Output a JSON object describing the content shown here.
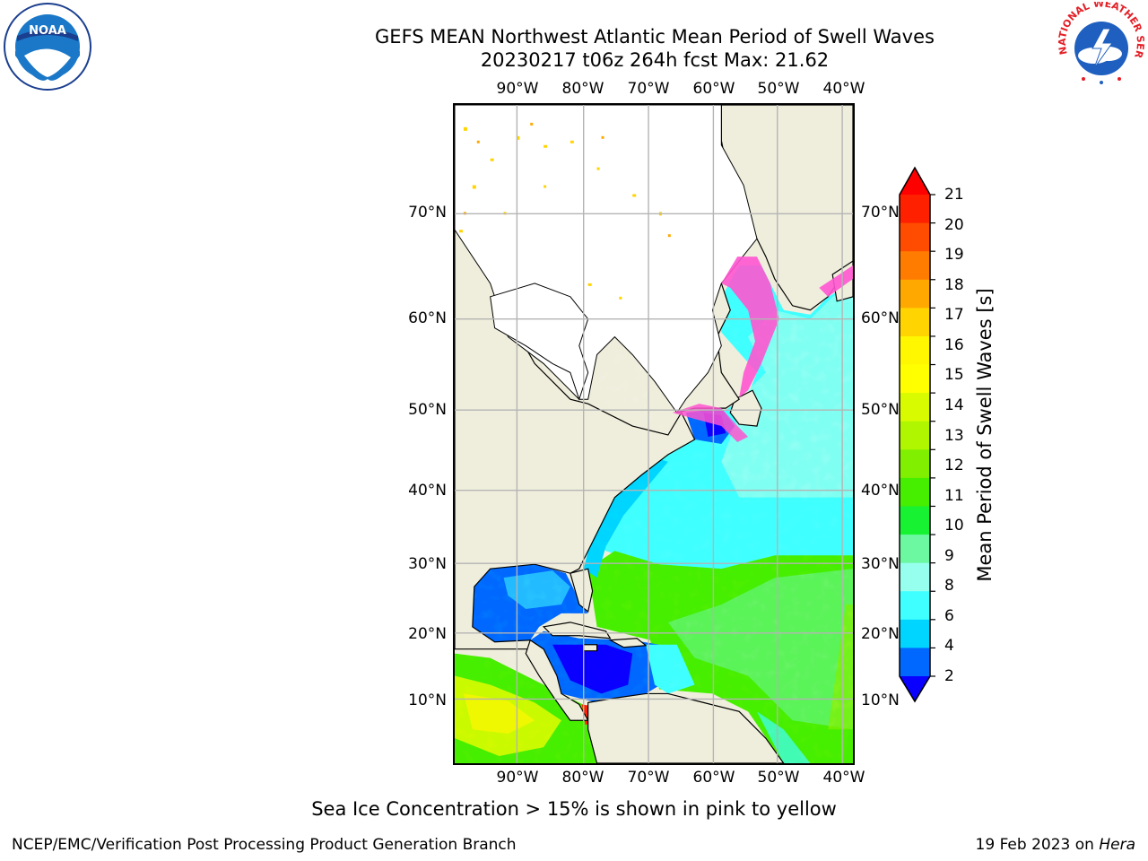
{
  "header": {
    "title_line1": "GEFS MEAN Northwest Atlantic Mean Period of Swell Waves",
    "title_line2": "20230217 t06z 264h fcst   Max: 21.62"
  },
  "axes": {
    "lon_labels": [
      "90°W",
      "80°W",
      "70°W",
      "60°W",
      "50°W",
      "40°W"
    ],
    "lat_labels": [
      "70°N",
      "60°N",
      "50°N",
      "40°N",
      "30°N",
      "20°N",
      "10°N"
    ]
  },
  "colorbar": {
    "label": "Mean Period of Swell Waves [s]",
    "ticks": [
      "21",
      "20",
      "19",
      "18",
      "17",
      "16",
      "15",
      "14",
      "13",
      "12",
      "11",
      "10",
      "9",
      "8",
      "6",
      "4",
      "2"
    ],
    "colors": [
      "#ff2000",
      "#ff4c00",
      "#ff7c00",
      "#ffa800",
      "#ffd400",
      "#fff700",
      "#ffff00",
      "#d8fb00",
      "#b0f600",
      "#80f000",
      "#46ee00",
      "#17f333",
      "#6cf8a0",
      "#96ffed",
      "#3fffff",
      "#00d5ff",
      "#0068ff"
    ],
    "under_color": "#0a00ff",
    "over_color": "#ff0000"
  },
  "map_colors": {
    "land": "#efeedc",
    "ice": "#ffffff",
    "ice_edge": "#ff55d0",
    "grid": "#b4b4b4",
    "coast": "#000000"
  },
  "logos": {
    "noaa_text": "NOAA",
    "nws_text": "NATIONAL WEATHER SERVICE"
  },
  "footer": {
    "note": "Sea Ice Concentration > 15% is shown in pink to yellow",
    "credit": "NCEP/EMC/Verification Post Processing Product Generation Branch",
    "date": "19 Feb 2023 on",
    "host": "Hera"
  }
}
